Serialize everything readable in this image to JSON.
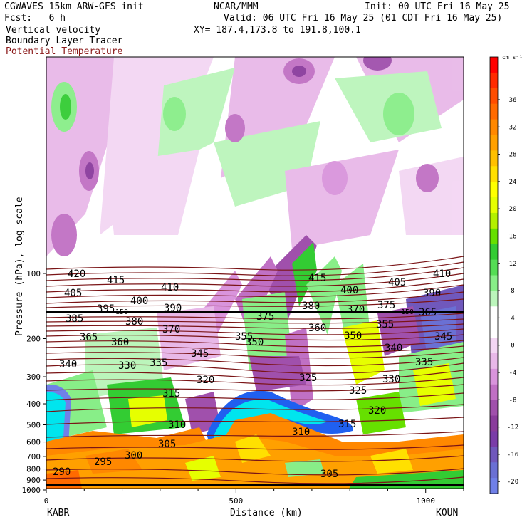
{
  "header": {
    "model_line": "CGWAVES 15km ARW-GFS init",
    "org": "NCAR/MMM",
    "init": "Init: 00 UTC Fri 16 May 25",
    "fcst": "Fcst:   6 h",
    "valid": "Valid: 06 UTC Fri 16 May 25 (01 CDT Fri 16 May 25)",
    "field1": "Vertical velocity",
    "field2": "Boundary Layer Tracer",
    "field3": "Potential Temperature",
    "xy": "XY= 187.4,173.8 to 191.8,100.1"
  },
  "colors": {
    "theta": "#7a1416",
    "field3_text": "#8b1a1a"
  },
  "chart_data": {
    "type": "heatmap",
    "ylabel": "Pressure (hPa), log scale",
    "xlabel": "Distance (km)",
    "x_endpoints": {
      "left": "KABR",
      "right": "KOUN"
    },
    "xlim": [
      0,
      1100
    ],
    "x_ticks": [
      0,
      500,
      1000
    ],
    "y_ticks": [
      100,
      200,
      300,
      400,
      500,
      600,
      700,
      800,
      900,
      1000
    ],
    "y_scale": "log",
    "colorbar": {
      "units": "cm s⁻¹",
      "labels": [
        "36",
        "32",
        "28",
        "24",
        "20",
        "16",
        "12",
        "8",
        "4",
        "0",
        "-4",
        "-8",
        "-12",
        "-16",
        "-20"
      ],
      "colors": [
        "#ff0000",
        "#ff2a00",
        "#ff4d00",
        "#ff6a00",
        "#ff8800",
        "#ffa000",
        "#ffc000",
        "#ffe000",
        "#ffff00",
        "#e6ff00",
        "#b4f000",
        "#66e000",
        "#33cc33",
        "#55dd55",
        "#88ee88",
        "#bbf5bb",
        "#ffffff",
        "#ffffff",
        "#f3d6f3",
        "#e8b8e8",
        "#d994dc",
        "#c070c4",
        "#a050ac",
        "#8a3c9c",
        "#7a3ca8",
        "#7058bc",
        "#6a70d4",
        "#7080e8"
      ]
    },
    "reference_line_label": "150",
    "theta_labels": [
      "420",
      "415",
      "410",
      "405",
      "400",
      "395",
      "390",
      "385",
      "380",
      "375",
      "370",
      "365",
      "360",
      "355",
      "350",
      "345",
      "340",
      "335",
      "330",
      "325",
      "320",
      "315",
      "310",
      "305",
      "300",
      "295",
      "290",
      "415",
      "410",
      "405",
      "400",
      "390",
      "380",
      "375",
      "370",
      "365",
      "360",
      "355",
      "350",
      "345",
      "340",
      "335",
      "330",
      "325",
      "320",
      "315",
      "310",
      "305"
    ]
  }
}
